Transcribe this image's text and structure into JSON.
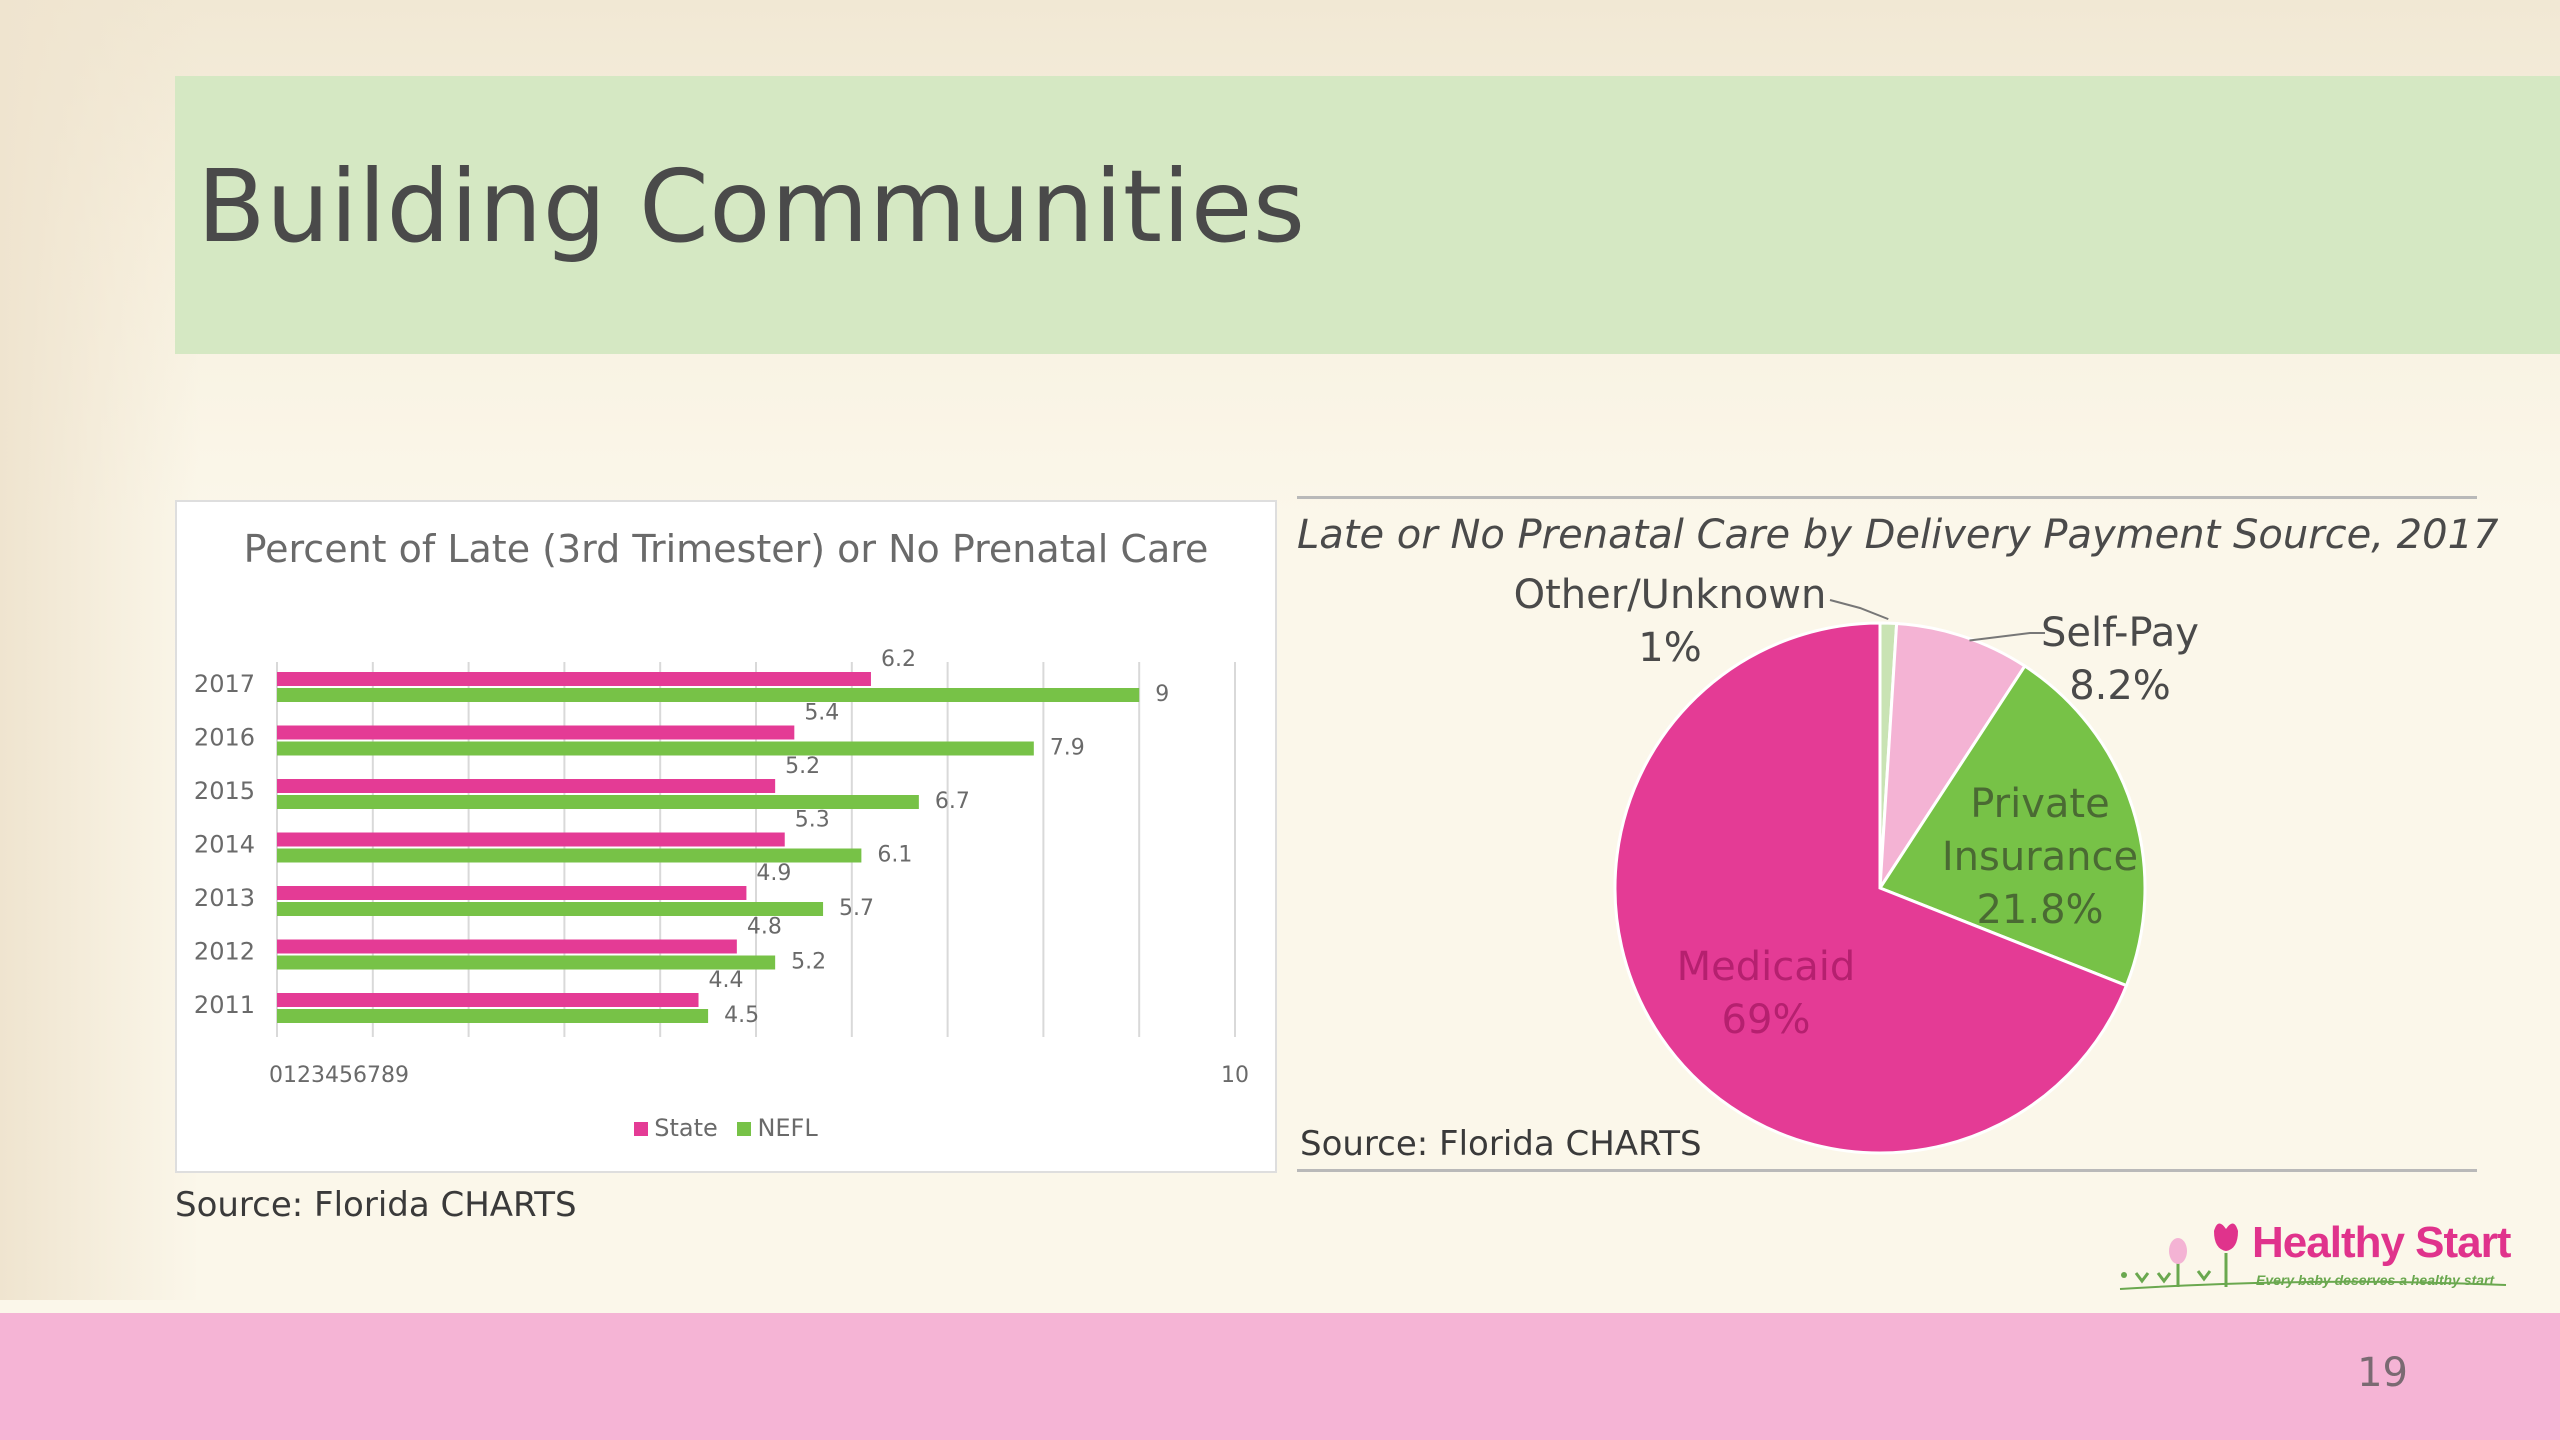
{
  "slide": {
    "title": "Building Communities",
    "page_number": "19"
  },
  "colors": {
    "state": "#e43b95",
    "nefl": "#77c247",
    "medicaid": "#e43b95",
    "private_insurance": "#77c247",
    "self_pay": "#f4b3d4",
    "other_unknown": "#c9e3b4",
    "title_band": "#d5e8c3",
    "bottom_band": "#f5b4d5"
  },
  "source_left": "Source: Florida CHARTS",
  "source_right": "Source: Florida CHARTS",
  "logo": {
    "name": "Healthy Start",
    "tagline": "Every baby deserves a healthy start",
    "icon": "flower-logo-icon"
  },
  "chart_data": [
    {
      "type": "bar",
      "orientation": "horizontal",
      "title": "Percent of Late (3rd Trimester) or No Prenatal Care",
      "categories": [
        "2017",
        "2016",
        "2015",
        "2014",
        "2013",
        "2012",
        "2011"
      ],
      "series": [
        {
          "name": "State",
          "values": [
            6.2,
            5.4,
            5.2,
            5.3,
            4.9,
            4.8,
            4.4
          ]
        },
        {
          "name": "NEFL",
          "values": [
            9,
            7.9,
            6.7,
            6.1,
            5.7,
            5.2,
            4.5
          ]
        }
      ],
      "xlim": [
        0,
        10
      ],
      "x_tick_labels": [
        "0123456789",
        "10"
      ],
      "grid": true,
      "legend_position": "bottom"
    },
    {
      "type": "pie",
      "title": "Late or No Prenatal Care by Delivery Payment Source, 2017",
      "slices": [
        {
          "label": "Other/Unknown",
          "value": 1,
          "display": "1%"
        },
        {
          "label": "Self-Pay",
          "value": 8.2,
          "display": "8.2%"
        },
        {
          "label": "Private Insurance",
          "value": 21.8,
          "display": "21.8%"
        },
        {
          "label": "Medicaid",
          "value": 69,
          "display": "69%"
        }
      ]
    }
  ]
}
